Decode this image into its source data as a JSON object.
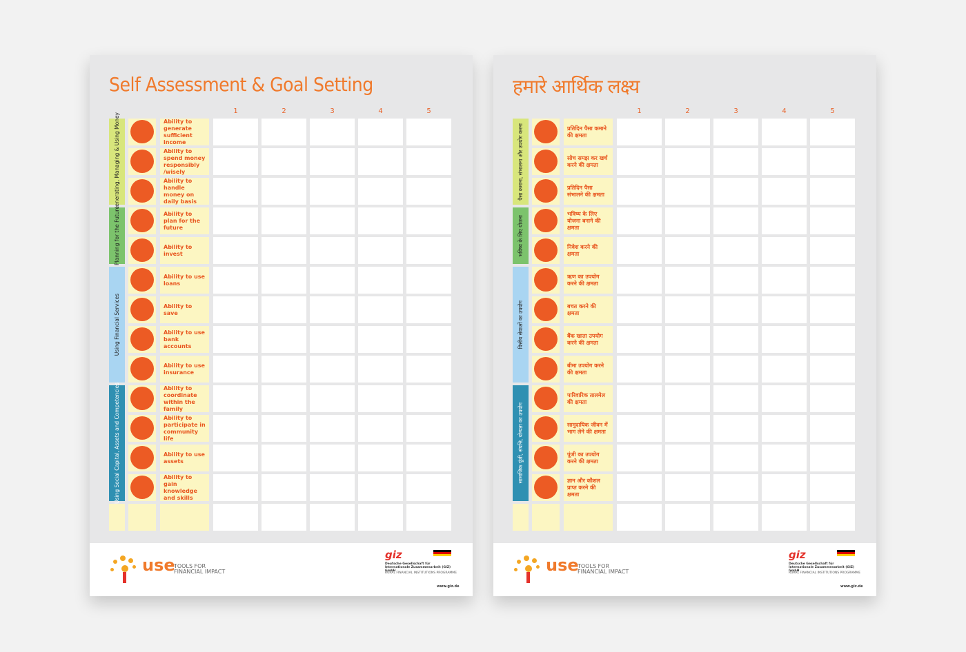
{
  "posters": [
    {
      "title": "Self Assessment & Goal Setting",
      "columns": [
        1,
        2,
        3,
        4,
        5
      ],
      "sections": [
        {
          "label": "Generating, Managing & Using Money",
          "color": "#d8e67c",
          "rows": [
            "Ability to generate sufficient income",
            "Ability to spend money responsibly /wisely",
            "Ability to handle money on daily basis"
          ]
        },
        {
          "label": "Planning for the Future",
          "color": "#7cc36c",
          "rows": [
            "Ability to plan for the future",
            "Ability to invest"
          ]
        },
        {
          "label": "Using Financial Services",
          "color": "#a9d5f2",
          "rows": [
            "Ability to use loans",
            "Ability to save",
            "Ability to use bank accounts",
            "Ability to use insurance"
          ]
        },
        {
          "label": "Using Social Capital, Assets and Competencies",
          "color": "#2f90b2",
          "rows": [
            "Ability to coordinate within the family",
            "Ability to participate in community life",
            "Ability to use assets",
            "Ability to gain knowledge and skills"
          ]
        }
      ],
      "footer": {
        "brand": "use",
        "tagline": "TOOLS FOR FINANCIAL IMPACT",
        "org": "giz",
        "org_name": "Deutsche Gesellschaft für Internationale Zusammenarbeit (GIZ) GmbH",
        "programme": "RURAL FINANCIAL INSTITUTIONS PROGRAMME",
        "url": "www.giz.de"
      }
    },
    {
      "title": "हमारे आर्थिक लक्ष्य",
      "columns": [
        1,
        2,
        3,
        4,
        5
      ],
      "sections": [
        {
          "label": "पैसा कमाना, संभालना और उपयोग करना",
          "color": "#d8e67c",
          "rows": [
            "प्रतिदिन पैसा कमाने की क्षमता",
            "सोच समझ कर खर्च करने की क्षमता",
            "प्रतिदिन पैसा संभालने की क्षमता"
          ]
        },
        {
          "label": "भविष्य के लिए योजना",
          "color": "#7cc36c",
          "rows": [
            "भविष्य के लिए योजना बनाने की क्षमता",
            "निवेश करने की क्षमता"
          ]
        },
        {
          "label": "वित्तीय सेवाओं का उपयोग",
          "color": "#a9d5f2",
          "rows": [
            "ऋण का उपयोग करने की क्षमता",
            "बचत करने की क्षमता",
            "बैंक खाता उपयोग करने की क्षमता",
            "बीमा उपयोग करने की क्षमता"
          ]
        },
        {
          "label": "सामाजिक पूंजी, संपत्ति, योग्यता का उपयोग",
          "color": "#2f90b2",
          "rows": [
            "पारिवारिक तालमेल की क्षमता",
            "सामुदायिक जीवन में भाग लेने की क्षमता",
            "पूंजी का उपयोग करने की क्षमता",
            "ज्ञान और कौशल प्राप्त करने की क्षमता"
          ]
        }
      ],
      "footer": {
        "brand": "use",
        "tagline": "TOOLS FOR FINANCIAL IMPACT",
        "org": "giz",
        "org_name": "Deutsche Gesellschaft für Internationale Zusammenarbeit (GIZ) GmbH",
        "programme": "RURAL FINANCIAL INSTITUTIONS PROGRAMME",
        "url": "www.giz.de"
      }
    }
  ]
}
